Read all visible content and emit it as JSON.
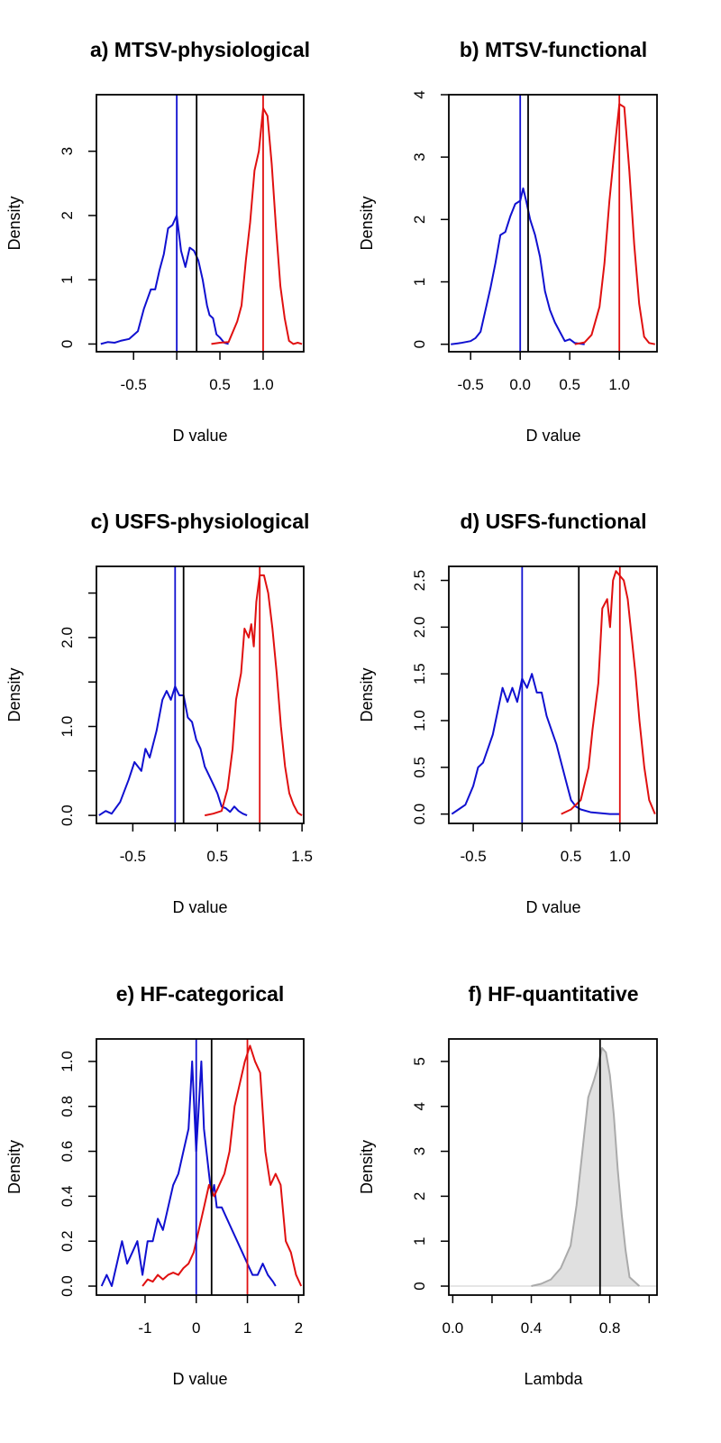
{
  "chart_data": [
    {
      "id": "a",
      "type": "line",
      "title": "a) MTSV-physiological",
      "xlabel": "D value",
      "ylabel": "Density",
      "xlim": [
        -0.93,
        1.47
      ],
      "ylim": [
        -0.12,
        3.88
      ],
      "xticks": [
        -0.5,
        0.5,
        1.0
      ],
      "xtick_labels": [
        "-0.5",
        "0.5",
        "1.0"
      ],
      "xtick_marks": [
        -0.5,
        0,
        0.5,
        1.0
      ],
      "yticks": [
        0,
        1,
        2,
        3
      ],
      "ytick_labels": [
        "0",
        "1",
        "2",
        "3"
      ],
      "vlines": [
        {
          "x": 0.0,
          "color": "#1010d0"
        },
        {
          "x": 0.23,
          "color": "#000000"
        },
        {
          "x": 1.0,
          "color": "#e01010"
        }
      ],
      "series": [
        {
          "color": "#1010d0",
          "x": [
            -0.88,
            -0.8,
            -0.72,
            -0.65,
            -0.55,
            -0.45,
            -0.38,
            -0.3,
            -0.25,
            -0.2,
            -0.15,
            -0.1,
            -0.05,
            0.0,
            0.05,
            0.1,
            0.15,
            0.2,
            0.25,
            0.3,
            0.35,
            0.38,
            0.42,
            0.46,
            0.5,
            0.55,
            0.6
          ],
          "y": [
            0.0,
            0.03,
            0.02,
            0.05,
            0.08,
            0.2,
            0.55,
            0.85,
            0.85,
            1.15,
            1.4,
            1.8,
            1.85,
            2.0,
            1.45,
            1.2,
            1.5,
            1.45,
            1.3,
            1.0,
            0.6,
            0.45,
            0.4,
            0.15,
            0.1,
            0.02,
            0.0
          ]
        },
        {
          "color": "#e01010",
          "x": [
            0.4,
            0.5,
            0.6,
            0.7,
            0.75,
            0.8,
            0.85,
            0.9,
            0.95,
            1.0,
            1.05,
            1.1,
            1.15,
            1.2,
            1.25,
            1.3,
            1.35,
            1.4,
            1.45
          ],
          "y": [
            0.0,
            0.02,
            0.03,
            0.35,
            0.6,
            1.3,
            1.9,
            2.7,
            3.0,
            3.67,
            3.55,
            2.8,
            1.8,
            0.9,
            0.4,
            0.05,
            0.0,
            0.02,
            0.0
          ]
        }
      ]
    },
    {
      "id": "b",
      "type": "line",
      "title": "b) MTSV-functional",
      "xlabel": "D value",
      "ylabel": "Density",
      "xlim": [
        -0.72,
        1.38
      ],
      "ylim": [
        -0.12,
        4.0
      ],
      "xticks": [
        -0.5,
        0.0,
        0.5,
        1.0
      ],
      "xtick_labels": [
        "-0.5",
        "0.0",
        "0.5",
        "1.0"
      ],
      "xtick_marks": [
        -0.5,
        0.0,
        0.5,
        1.0
      ],
      "yticks": [
        0,
        1,
        2,
        3,
        4
      ],
      "ytick_labels": [
        "0",
        "1",
        "2",
        "3",
        "4"
      ],
      "vlines": [
        {
          "x": 0.0,
          "color": "#1010d0"
        },
        {
          "x": 0.08,
          "color": "#000000"
        },
        {
          "x": 1.0,
          "color": "#e01010"
        }
      ],
      "series": [
        {
          "color": "#1010d0",
          "x": [
            -0.7,
            -0.6,
            -0.5,
            -0.45,
            -0.4,
            -0.35,
            -0.3,
            -0.25,
            -0.2,
            -0.15,
            -0.1,
            -0.05,
            0.0,
            0.03,
            0.06,
            0.1,
            0.15,
            0.2,
            0.25,
            0.3,
            0.35,
            0.4,
            0.45,
            0.5,
            0.55,
            0.6,
            0.65
          ],
          "y": [
            0.0,
            0.02,
            0.05,
            0.1,
            0.2,
            0.55,
            0.9,
            1.3,
            1.75,
            1.8,
            2.05,
            2.25,
            2.3,
            2.5,
            2.3,
            2.0,
            1.75,
            1.4,
            0.85,
            0.55,
            0.35,
            0.2,
            0.05,
            0.08,
            0.02,
            0.01,
            0.0
          ]
        },
        {
          "color": "#e01010",
          "x": [
            0.55,
            0.65,
            0.72,
            0.8,
            0.85,
            0.9,
            0.95,
            1.0,
            1.05,
            1.1,
            1.15,
            1.2,
            1.25,
            1.3,
            1.36
          ],
          "y": [
            0.0,
            0.03,
            0.15,
            0.6,
            1.3,
            2.3,
            3.1,
            3.85,
            3.8,
            2.8,
            1.6,
            0.65,
            0.12,
            0.02,
            0.0
          ]
        }
      ]
    },
    {
      "id": "c",
      "type": "line",
      "title": "c) USFS-physiological",
      "xlabel": "D value",
      "ylabel": "Density",
      "xlim": [
        -0.93,
        1.52
      ],
      "ylim": [
        -0.09,
        2.8
      ],
      "xticks": [
        -0.5,
        0.5,
        1.5
      ],
      "xtick_labels": [
        "-0.5",
        "0.5",
        "1.5"
      ],
      "xtick_marks": [
        -0.5,
        0,
        0.5,
        1.0,
        1.5
      ],
      "yticks": [
        0.0,
        1.0,
        2.0
      ],
      "ytick_labels": [
        "0.0",
        "1.0",
        "2.0"
      ],
      "yticks_minor": [
        0.5,
        1.5,
        2.5
      ],
      "vlines": [
        {
          "x": 0.0,
          "color": "#1010d0"
        },
        {
          "x": 0.1,
          "color": "#000000"
        },
        {
          "x": 1.0,
          "color": "#e01010"
        }
      ],
      "series": [
        {
          "color": "#1010d0",
          "x": [
            -0.9,
            -0.82,
            -0.75,
            -0.65,
            -0.55,
            -0.48,
            -0.4,
            -0.35,
            -0.3,
            -0.22,
            -0.15,
            -0.1,
            -0.05,
            0.0,
            0.05,
            0.1,
            0.15,
            0.2,
            0.25,
            0.3,
            0.35,
            0.4,
            0.45,
            0.5,
            0.55,
            0.6,
            0.65,
            0.7,
            0.75,
            0.8,
            0.85
          ],
          "y": [
            0.0,
            0.05,
            0.02,
            0.15,
            0.4,
            0.6,
            0.5,
            0.75,
            0.65,
            0.95,
            1.3,
            1.4,
            1.3,
            1.45,
            1.35,
            1.35,
            1.1,
            1.05,
            0.85,
            0.75,
            0.55,
            0.45,
            0.35,
            0.25,
            0.1,
            0.08,
            0.04,
            0.1,
            0.05,
            0.02,
            0.0
          ]
        },
        {
          "color": "#e01010",
          "x": [
            0.35,
            0.45,
            0.55,
            0.62,
            0.68,
            0.72,
            0.78,
            0.82,
            0.87,
            0.9,
            0.93,
            0.96,
            1.0,
            1.05,
            1.1,
            1.15,
            1.2,
            1.25,
            1.3,
            1.35,
            1.4,
            1.45,
            1.5
          ],
          "y": [
            0.0,
            0.02,
            0.05,
            0.3,
            0.75,
            1.3,
            1.6,
            2.1,
            2.0,
            2.15,
            1.9,
            2.4,
            2.7,
            2.7,
            2.5,
            2.1,
            1.6,
            1.0,
            0.55,
            0.25,
            0.12,
            0.03,
            0.0
          ]
        }
      ]
    },
    {
      "id": "d",
      "type": "line",
      "title": "d) USFS-functional",
      "xlabel": "D value",
      "ylabel": "Density",
      "xlim": [
        -0.75,
        1.38
      ],
      "ylim": [
        -0.1,
        2.65
      ],
      "xticks": [
        -0.5,
        0.5,
        1.0
      ],
      "xtick_labels": [
        "-0.5",
        "0.5",
        "1.0"
      ],
      "xtick_marks": [
        -0.5,
        0,
        0.5,
        1.0
      ],
      "yticks": [
        0.0,
        0.5,
        1.0,
        1.5,
        2.0,
        2.5
      ],
      "ytick_labels": [
        "0.0",
        "0.5",
        "1.0",
        "1.5",
        "2.0",
        "2.5"
      ],
      "vlines": [
        {
          "x": 0.0,
          "color": "#1010d0"
        },
        {
          "x": 0.58,
          "color": "#000000"
        },
        {
          "x": 1.0,
          "color": "#e01010"
        }
      ],
      "series": [
        {
          "color": "#1010d0",
          "x": [
            -0.72,
            -0.65,
            -0.58,
            -0.5,
            -0.45,
            -0.4,
            -0.35,
            -0.3,
            -0.25,
            -0.2,
            -0.15,
            -0.1,
            -0.05,
            0.0,
            0.05,
            0.1,
            0.15,
            0.2,
            0.25,
            0.3,
            0.35,
            0.4,
            0.45,
            0.5,
            0.55,
            0.6,
            0.7,
            0.8,
            0.9,
            1.0
          ],
          "y": [
            0.0,
            0.05,
            0.1,
            0.3,
            0.5,
            0.55,
            0.7,
            0.85,
            1.1,
            1.35,
            1.2,
            1.35,
            1.2,
            1.45,
            1.35,
            1.5,
            1.3,
            1.3,
            1.05,
            0.9,
            0.75,
            0.55,
            0.35,
            0.15,
            0.08,
            0.05,
            0.02,
            0.01,
            0.0,
            0.0
          ]
        },
        {
          "color": "#e01010",
          "x": [
            0.4,
            0.5,
            0.6,
            0.68,
            0.72,
            0.78,
            0.82,
            0.87,
            0.9,
            0.93,
            0.96,
            1.0,
            1.04,
            1.08,
            1.12,
            1.16,
            1.2,
            1.25,
            1.3,
            1.36
          ],
          "y": [
            0.0,
            0.05,
            0.15,
            0.5,
            0.9,
            1.4,
            2.2,
            2.3,
            2.0,
            2.5,
            2.6,
            2.55,
            2.5,
            2.3,
            1.9,
            1.5,
            1.0,
            0.5,
            0.15,
            0.0
          ]
        }
      ]
    },
    {
      "id": "e",
      "type": "line",
      "title": "e) HF-categorical",
      "xlabel": "D value",
      "ylabel": "Density",
      "xlim": [
        -1.95,
        2.1
      ],
      "ylim": [
        -0.04,
        1.1
      ],
      "xticks": [
        -1,
        0,
        1,
        2
      ],
      "xtick_labels": [
        "-1",
        "0",
        "1",
        "2"
      ],
      "xtick_marks": [
        -1,
        0,
        1,
        2
      ],
      "yticks": [
        0.0,
        0.2,
        0.4,
        0.6,
        0.8,
        1.0
      ],
      "ytick_labels": [
        "0.0",
        "0.2",
        "0.4",
        "0.6",
        "0.8",
        "1.0"
      ],
      "vlines": [
        {
          "x": 0.0,
          "color": "#1010d0"
        },
        {
          "x": 0.3,
          "color": "#000000"
        },
        {
          "x": 1.0,
          "color": "#e01010"
        }
      ],
      "series": [
        {
          "color": "#1010d0",
          "x": [
            -1.85,
            -1.75,
            -1.65,
            -1.55,
            -1.45,
            -1.35,
            -1.25,
            -1.15,
            -1.05,
            -0.95,
            -0.85,
            -0.75,
            -0.65,
            -0.55,
            -0.45,
            -0.35,
            -0.25,
            -0.15,
            -0.08,
            0.0,
            0.05,
            0.1,
            0.15,
            0.2,
            0.25,
            0.3,
            0.35,
            0.4,
            0.5,
            0.6,
            0.7,
            0.8,
            0.9,
            1.0,
            1.1,
            1.2,
            1.3,
            1.4,
            1.5,
            1.55
          ],
          "y": [
            0.0,
            0.05,
            0.0,
            0.1,
            0.2,
            0.1,
            0.15,
            0.2,
            0.05,
            0.2,
            0.2,
            0.3,
            0.25,
            0.35,
            0.45,
            0.5,
            0.6,
            0.7,
            1.0,
            0.6,
            0.8,
            1.0,
            0.7,
            0.6,
            0.5,
            0.4,
            0.45,
            0.35,
            0.35,
            0.3,
            0.25,
            0.2,
            0.15,
            0.1,
            0.05,
            0.05,
            0.1,
            0.05,
            0.02,
            0.0
          ]
        },
        {
          "color": "#e01010",
          "x": [
            -1.05,
            -0.95,
            -0.85,
            -0.75,
            -0.65,
            -0.55,
            -0.45,
            -0.35,
            -0.25,
            -0.15,
            -0.05,
            0.05,
            0.15,
            0.25,
            0.35,
            0.45,
            0.55,
            0.65,
            0.75,
            0.85,
            0.95,
            1.05,
            1.15,
            1.25,
            1.35,
            1.45,
            1.55,
            1.65,
            1.75,
            1.85,
            1.95,
            2.05
          ],
          "y": [
            0.0,
            0.03,
            0.02,
            0.05,
            0.03,
            0.05,
            0.06,
            0.05,
            0.08,
            0.1,
            0.15,
            0.25,
            0.35,
            0.45,
            0.4,
            0.45,
            0.5,
            0.6,
            0.8,
            0.9,
            1.0,
            1.07,
            1.0,
            0.95,
            0.6,
            0.45,
            0.5,
            0.45,
            0.2,
            0.15,
            0.05,
            0.0
          ]
        }
      ]
    },
    {
      "id": "f",
      "type": "area",
      "title": "f) HF-quantitative",
      "xlabel": "Lambda",
      "ylabel": "Density",
      "xlim": [
        -0.02,
        1.04
      ],
      "ylim": [
        -0.2,
        5.5
      ],
      "xticks": [
        0.0,
        0.4,
        0.8
      ],
      "xtick_labels": [
        "0.0",
        "0.4",
        "0.8"
      ],
      "xtick_marks": [
        0.0,
        0.2,
        0.4,
        0.6,
        0.8,
        1.0
      ],
      "yticks": [
        0,
        1,
        2,
        3,
        4,
        5
      ],
      "ytick_labels": [
        "0",
        "1",
        "2",
        "3",
        "4",
        "5"
      ],
      "vlines": [
        {
          "x": 0.75,
          "color": "#000000"
        }
      ],
      "series": [
        {
          "color": "#aaaaaa",
          "fill": "#e0e0e0",
          "x": [
            0.4,
            0.45,
            0.5,
            0.55,
            0.6,
            0.63,
            0.66,
            0.69,
            0.72,
            0.74,
            0.76,
            0.78,
            0.8,
            0.82,
            0.84,
            0.86,
            0.88,
            0.9,
            0.95
          ],
          "y": [
            0.0,
            0.05,
            0.15,
            0.4,
            0.9,
            1.8,
            3.0,
            4.2,
            4.6,
            4.9,
            5.3,
            5.2,
            4.7,
            3.8,
            2.6,
            1.6,
            0.8,
            0.2,
            0.0
          ]
        }
      ]
    }
  ]
}
